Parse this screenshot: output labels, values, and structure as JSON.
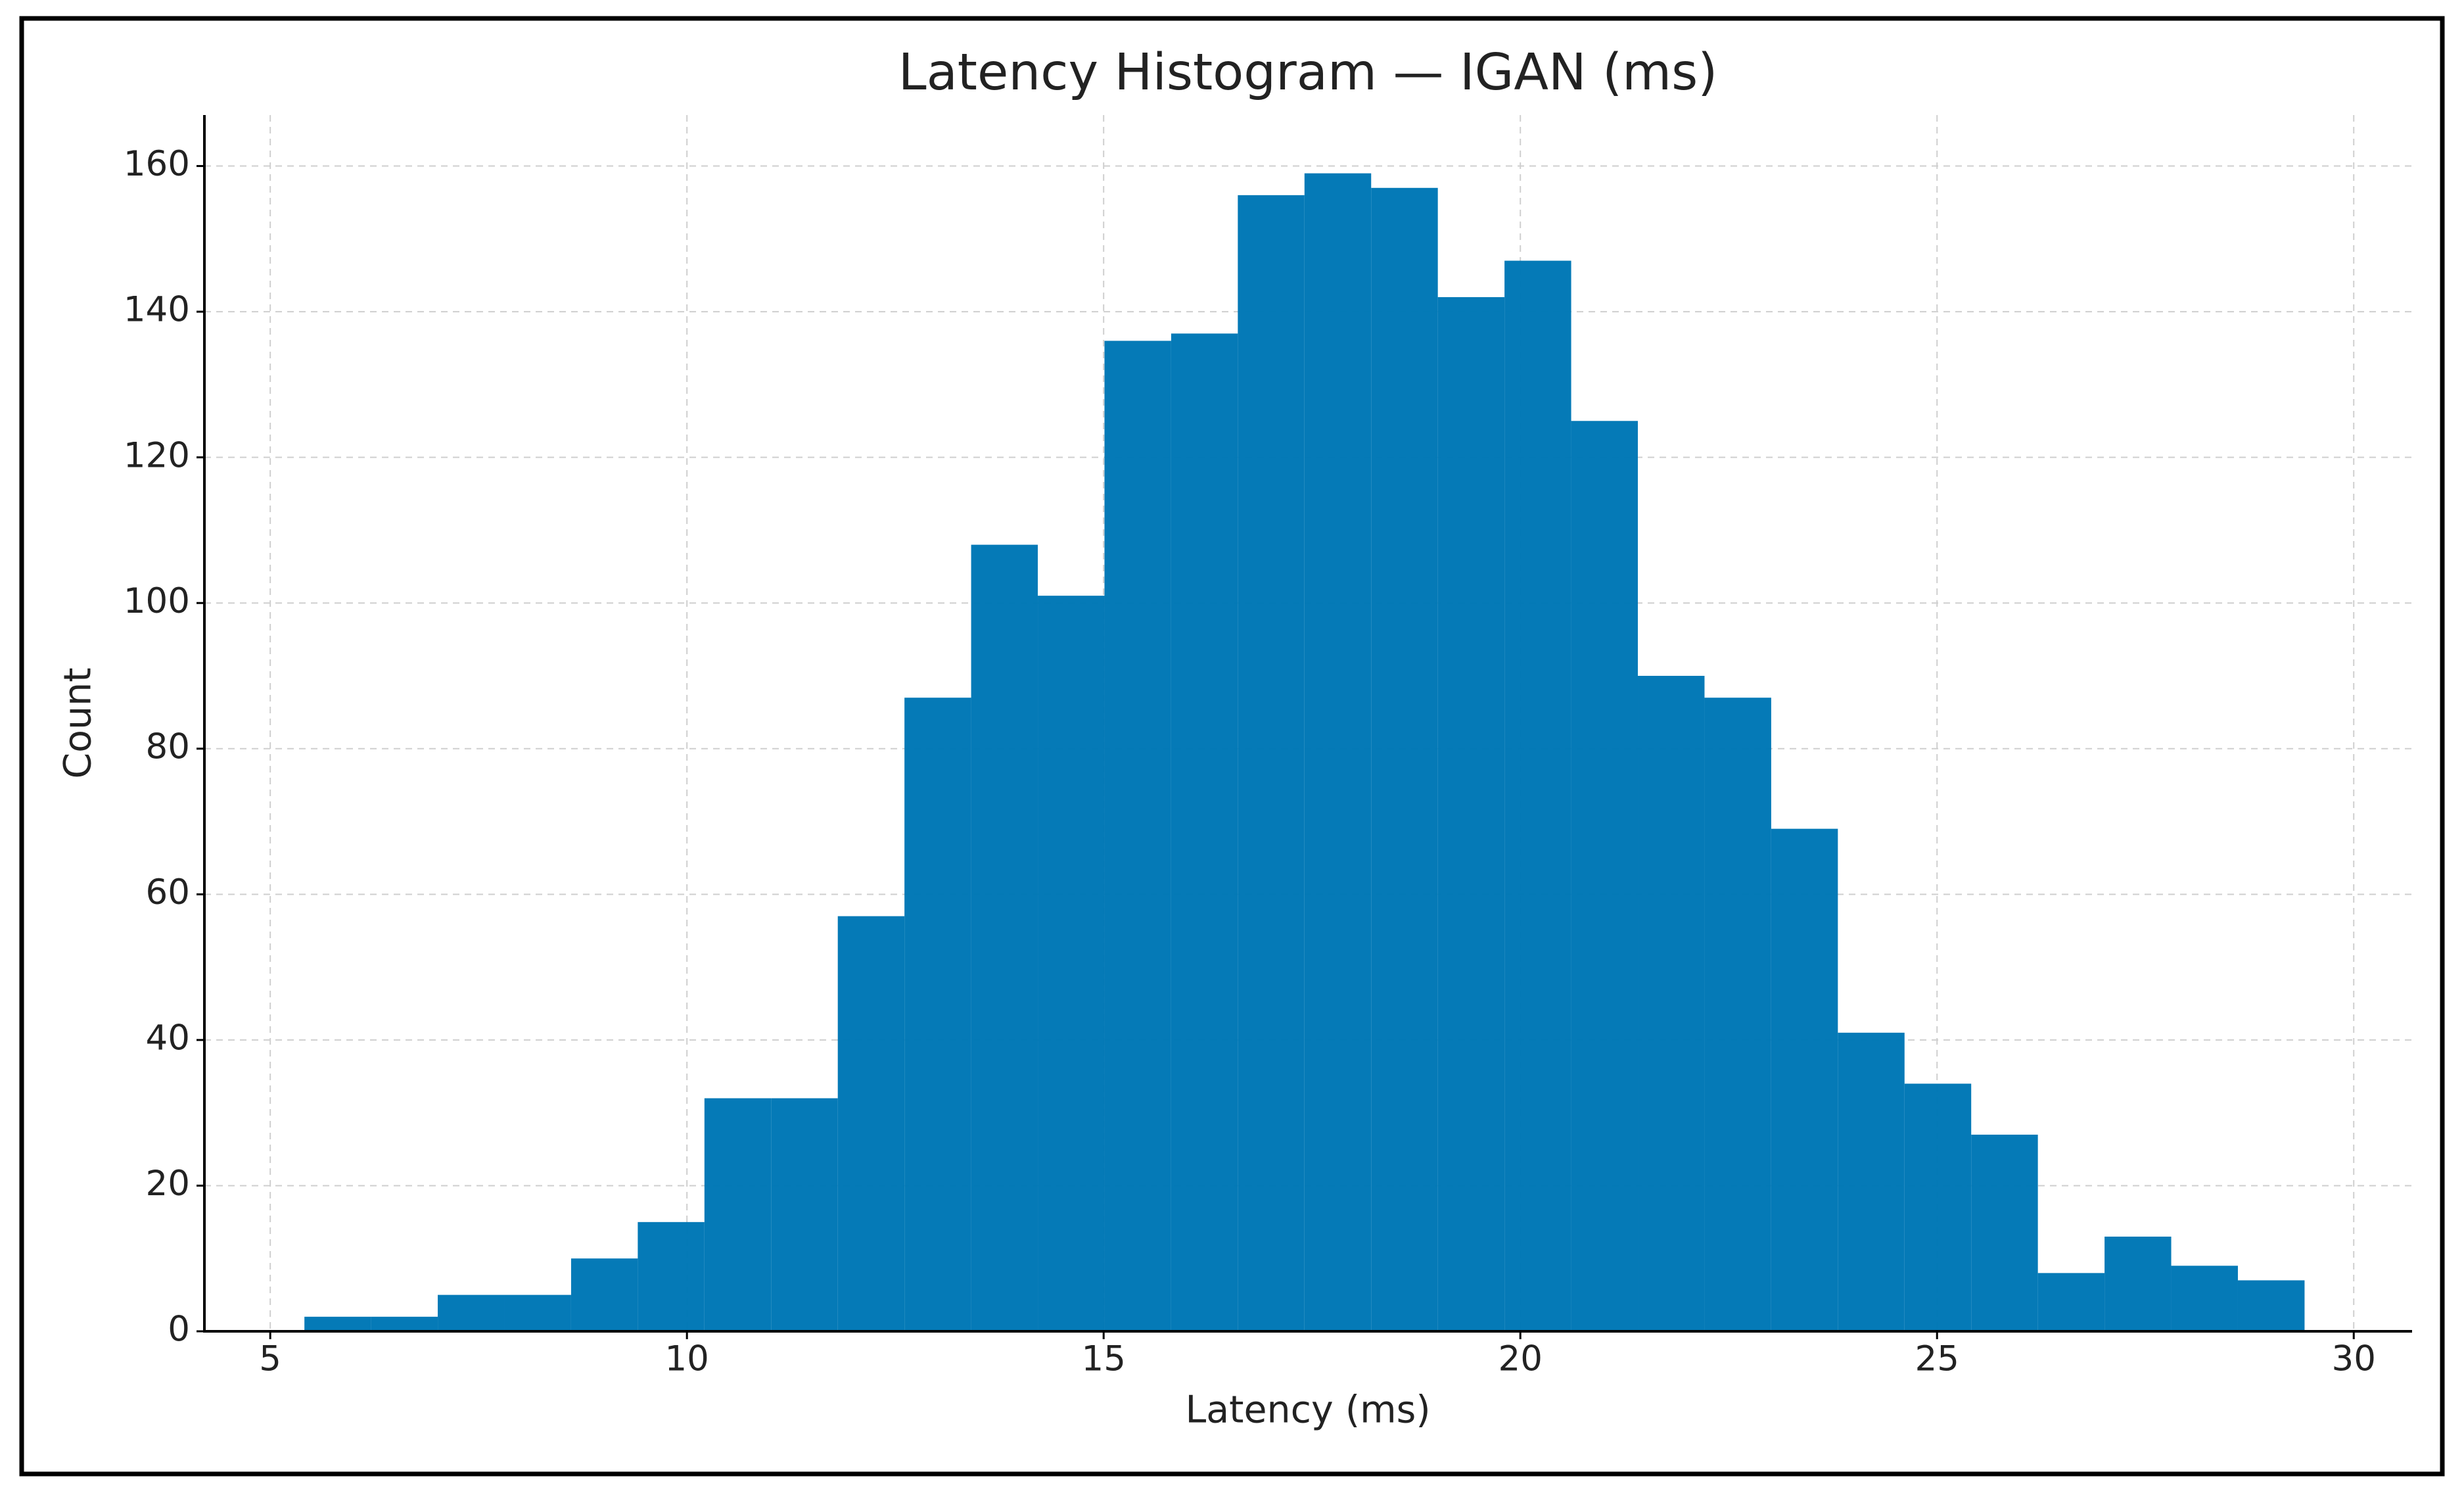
{
  "chart_data": {
    "type": "histogram",
    "title": "Latency Histogram — IGAN (ms)",
    "x_label": "Latency (ms)",
    "y_label": "Count",
    "color": "#0077b6",
    "bins": [
      5.41,
      6.21,
      7.01,
      7.81,
      8.61,
      9.41,
      10.21,
      11.01,
      11.81,
      12.61,
      13.41,
      14.21,
      15.01,
      15.81,
      16.61,
      17.41,
      18.21,
      19.01,
      19.81,
      20.61,
      21.41,
      22.21,
      23.01,
      23.81,
      24.61,
      25.41,
      26.21,
      27.01,
      27.81,
      28.61,
      29.41
    ],
    "values": [
      2,
      2,
      5,
      5,
      10,
      15,
      32,
      32,
      57,
      87,
      108,
      101,
      136,
      137,
      156,
      159,
      157,
      142,
      147,
      125,
      90,
      87,
      69,
      41,
      34,
      27,
      8,
      13,
      9,
      7
    ],
    "xlim": [
      4.21,
      30.7
    ],
    "ylim": [
      0,
      167
    ],
    "xticks": [
      5,
      10,
      15,
      20,
      25,
      30
    ],
    "yticks": [
      0,
      20,
      40,
      60,
      80,
      100,
      120,
      140,
      160
    ],
    "grid": true
  }
}
